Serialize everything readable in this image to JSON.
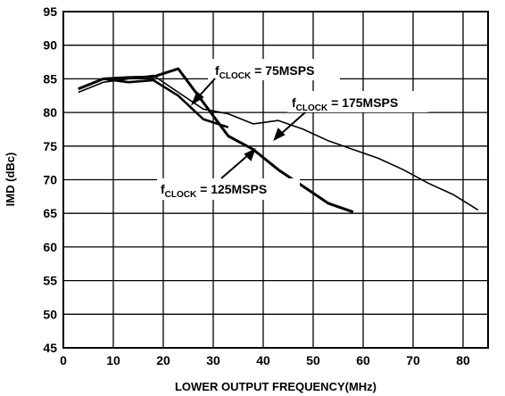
{
  "chart_data": {
    "type": "line",
    "title": "",
    "xlabel": "LOWER OUTPUT FREQUENCY(MHz)",
    "ylabel": "IMD (dBc)",
    "xlim": [
      0,
      85
    ],
    "ylim": [
      45,
      95
    ],
    "xticks": [
      0,
      10,
      20,
      30,
      40,
      50,
      60,
      70,
      80
    ],
    "yticks": [
      45,
      50,
      55,
      60,
      65,
      70,
      75,
      80,
      85,
      90,
      95
    ],
    "grid": true,
    "series": [
      {
        "name": "fCLOCK = 75MSPS",
        "x": [
          3,
          8,
          13,
          18,
          23,
          28,
          33
        ],
        "y": [
          83.5,
          85,
          84.5,
          84.8,
          82.5,
          79,
          77.8
        ]
      },
      {
        "name": "fCLOCK = 125MSPS",
        "x": [
          3,
          8,
          13,
          18,
          23,
          28,
          33,
          38,
          43,
          48,
          53,
          58
        ],
        "y": [
          83.5,
          85,
          85.2,
          85.3,
          86.5,
          81.5,
          76.5,
          74.5,
          71.5,
          69,
          66.5,
          65.2
        ]
      },
      {
        "name": "fCLOCK = 175MSPS",
        "x": [
          3,
          8,
          13,
          18,
          23,
          28,
          33,
          38,
          43,
          48,
          53,
          58,
          63,
          68,
          73,
          78,
          83
        ],
        "y": [
          83,
          84.5,
          85,
          85.5,
          83,
          80.5,
          79.8,
          78.3,
          78.8,
          77.5,
          75.8,
          74.5,
          73.2,
          71.5,
          69.5,
          67.8,
          65.5
        ]
      }
    ],
    "annotations": [
      {
        "main": "f",
        "sub": "CLOCK",
        "rest": " = 75MSPS"
      },
      {
        "main": "f",
        "sub": "CLOCK",
        "rest": " = 175MSPS"
      },
      {
        "main": "f",
        "sub": "CLOCK",
        "rest": " = 125MSPS"
      }
    ]
  }
}
